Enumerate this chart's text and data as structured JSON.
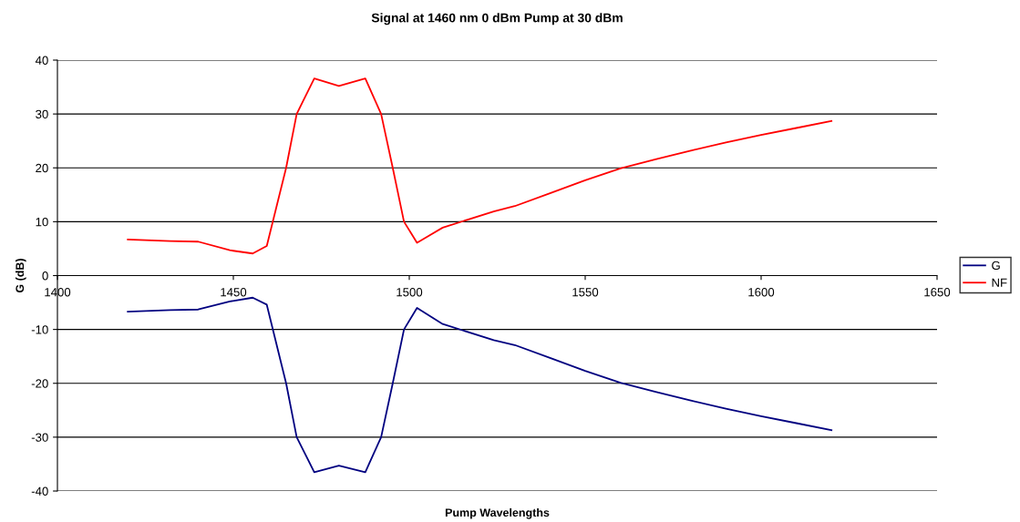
{
  "chart_data": {
    "type": "line",
    "title": "Signal at 1460 nm 0 dBm Pump at 30 dBm",
    "xlabel": "Pump Wavelengths",
    "ylabel": "G (dB)",
    "xlim": [
      1400,
      1650
    ],
    "xticks": [
      1400,
      1450,
      1500,
      1550,
      1600,
      1650
    ],
    "ylim": [
      -40,
      40
    ],
    "yticks": [
      -40,
      -30,
      -20,
      -10,
      0,
      10,
      20,
      30,
      40
    ],
    "grid": "y",
    "legend": "right",
    "line_style": "solid",
    "marker": "none",
    "series": [
      {
        "name": "G",
        "color": "#000080",
        "x": [
          1420,
          1432,
          1440,
          1449,
          1455.5,
          1459.5,
          1465,
          1468,
          1473,
          1480,
          1487.5,
          1492,
          1495.3,
          1498.5,
          1502.2,
          1509.5,
          1524,
          1530,
          1540,
          1550,
          1560,
          1570,
          1580,
          1590,
          1600,
          1610,
          1620
        ],
        "values": [
          -6.7,
          -6.4,
          -6.3,
          -4.8,
          -4.1,
          -5.4,
          -20,
          -30,
          -36.5,
          -35.3,
          -36.5,
          -30,
          -20,
          -10,
          -6.0,
          -9.0,
          -12,
          -12.9,
          -15.3,
          -17.7,
          -19.9,
          -21.6,
          -23.2,
          -24.7,
          -26.1,
          -27.4,
          -28.7
        ]
      },
      {
        "name": "NF",
        "color": "#ff0000",
        "x": [
          1420,
          1432,
          1440,
          1449,
          1455.5,
          1459.5,
          1465,
          1468,
          1473,
          1480,
          1487.5,
          1492,
          1495.3,
          1498.5,
          1502.2,
          1509.5,
          1524,
          1530,
          1540,
          1550,
          1560,
          1570,
          1580,
          1590,
          1600,
          1610,
          1620
        ],
        "values": [
          6.7,
          6.4,
          6.3,
          4.7,
          4.1,
          5.5,
          20,
          30,
          36.6,
          35.2,
          36.6,
          30,
          20,
          10,
          6.1,
          8.9,
          11.9,
          12.9,
          15.3,
          17.7,
          19.9,
          21.6,
          23.2,
          24.7,
          26.1,
          27.4,
          28.7
        ]
      }
    ]
  }
}
